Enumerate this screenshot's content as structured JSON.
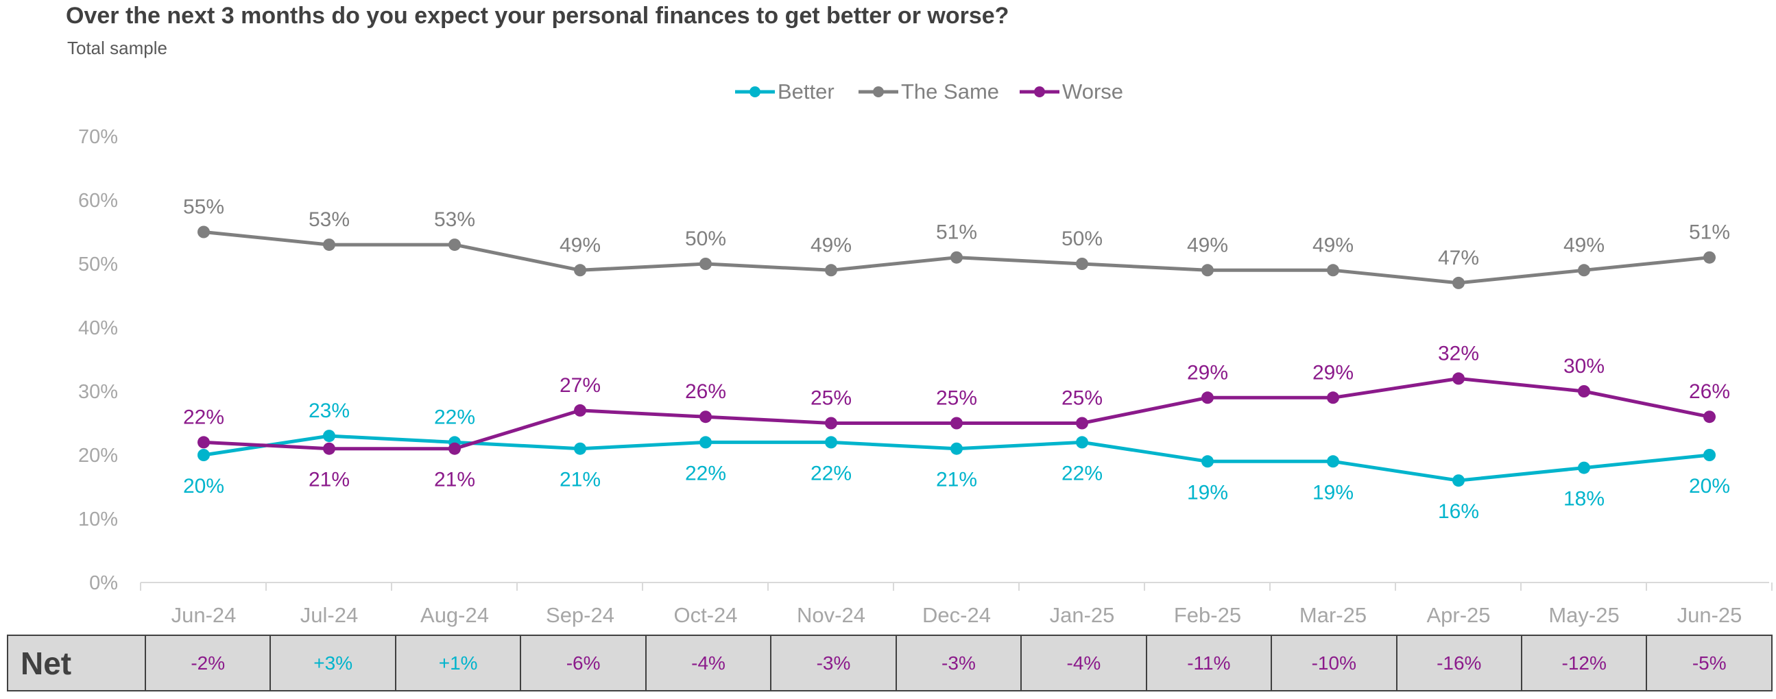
{
  "title": "Over the next 3 months do you expect your personal finances to get better or worse?",
  "subtitle": "Total sample",
  "colors": {
    "better": "#00b4cc",
    "same": "#7f7f7f",
    "worse": "#8b1a8b",
    "axis_text": "#a6a6a6",
    "axis_line": "#d9d9d9"
  },
  "chart_data": {
    "type": "line",
    "categories": [
      "Jun-24",
      "Jul-24",
      "Aug-24",
      "Sep-24",
      "Oct-24",
      "Nov-24",
      "Dec-24",
      "Jan-25",
      "Feb-25",
      "Mar-25",
      "Apr-25",
      "May-25",
      "Jun-25"
    ],
    "series": [
      {
        "name": "Better",
        "color": "#00b4cc",
        "values": [
          20,
          23,
          22,
          21,
          22,
          22,
          21,
          22,
          19,
          19,
          16,
          18,
          20
        ],
        "label_position": "mixed"
      },
      {
        "name": "The Same",
        "color": "#7f7f7f",
        "values": [
          55,
          53,
          53,
          49,
          50,
          49,
          51,
          50,
          49,
          49,
          47,
          49,
          51
        ],
        "label_position": "above"
      },
      {
        "name": "Worse",
        "color": "#8b1a8b",
        "values": [
          22,
          21,
          21,
          27,
          26,
          25,
          25,
          25,
          29,
          29,
          32,
          30,
          26
        ],
        "label_position": "mixed"
      }
    ],
    "data_labels": {
      "Better": [
        "20%",
        "23%",
        "22%",
        "21%",
        "22%",
        "22%",
        "21%",
        "22%",
        "19%",
        "19%",
        "16%",
        "18%",
        "20%"
      ],
      "The Same": [
        "55%",
        "53%",
        "53%",
        "49%",
        "50%",
        "49%",
        "51%",
        "50%",
        "49%",
        "49%",
        "47%",
        "49%",
        "51%"
      ],
      "Worse": [
        "22%",
        "21%",
        "21%",
        "27%",
        "26%",
        "25%",
        "25%",
        "25%",
        "29%",
        "29%",
        "32%",
        "30%",
        "26%"
      ]
    },
    "ylim": [
      0,
      70
    ],
    "yticks": [
      "0%",
      "10%",
      "20%",
      "30%",
      "40%",
      "50%",
      "60%",
      "70%"
    ],
    "grid": false,
    "legend_position": "top-center",
    "xlabel": "",
    "ylabel": ""
  },
  "net": {
    "label": "Net",
    "values": [
      "-2%",
      "+3%",
      "+1%",
      "-6%",
      "-4%",
      "-3%",
      "-3%",
      "-4%",
      "-11%",
      "-10%",
      "-16%",
      "-12%",
      "-5%"
    ],
    "positive_color": "#00b4cc",
    "negative_color": "#8b1a8b"
  }
}
